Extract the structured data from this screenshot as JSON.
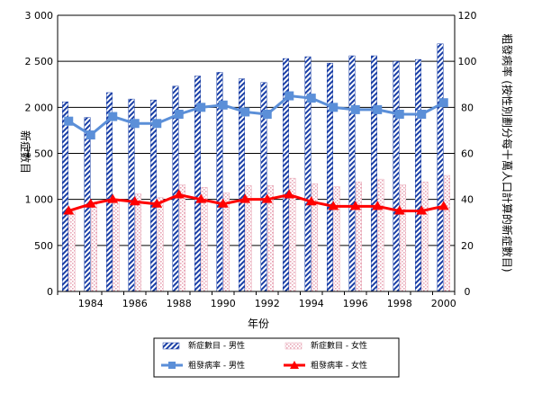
{
  "chart_data": {
    "type": "bar+line",
    "xlabel": "年份",
    "ylabel_left": "新症數目",
    "ylabel_right": "粗發病率 (按性別劃分每十萬人口計算的新症數目)",
    "ylim_left": [
      0,
      3000
    ],
    "ylim_right": [
      0,
      120
    ],
    "yticks_left": [
      "0",
      "500",
      "1 000",
      "1 500",
      "2 000",
      "2 500",
      "3 000"
    ],
    "yticks_right": [
      "0",
      "20",
      "40",
      "60",
      "80",
      "100",
      "120"
    ],
    "x": [
      1983,
      1984,
      1985,
      1986,
      1987,
      1988,
      1989,
      1990,
      1991,
      1992,
      1993,
      1994,
      1995,
      1996,
      1997,
      1998,
      1999,
      2000
    ],
    "xtick_labels": [
      "1984",
      "1986",
      "1988",
      "1990",
      "1992",
      "1994",
      "1996",
      "1998",
      "2000"
    ],
    "grid": "horizontal",
    "legend_position": "bottom",
    "series": [
      {
        "name": "新症數目 - 男性",
        "kind": "bar",
        "axis": "left",
        "color": "#1a3fa6",
        "values": [
          2060,
          1890,
          2160,
          2090,
          2080,
          2230,
          2340,
          2380,
          2310,
          2270,
          2530,
          2550,
          2480,
          2560,
          2560,
          2500,
          2520,
          2690
        ]
      },
      {
        "name": "新症數目 - 女性",
        "kind": "bar",
        "axis": "left",
        "color": "#e8a6b6",
        "values": [
          870,
          960,
          1000,
          1060,
          1020,
          1160,
          1130,
          1070,
          1150,
          1150,
          1230,
          1170,
          1140,
          1190,
          1220,
          1160,
          1190,
          1260
        ]
      },
      {
        "name": "粗發病率 - 男性",
        "kind": "line",
        "axis": "right",
        "color": "#5b8fd8",
        "values": [
          74,
          68,
          76,
          73,
          73,
          77,
          80,
          81,
          78,
          77,
          85,
          84,
          80,
          79,
          79,
          77,
          77,
          82
        ]
      },
      {
        "name": "粗發病率 - 女性",
        "kind": "line",
        "axis": "right",
        "color": "#ff0000",
        "values": [
          35,
          38,
          40,
          39,
          38,
          42,
          40,
          38,
          40,
          40,
          42,
          39,
          37,
          37,
          37,
          35,
          35,
          37
        ]
      }
    ]
  }
}
